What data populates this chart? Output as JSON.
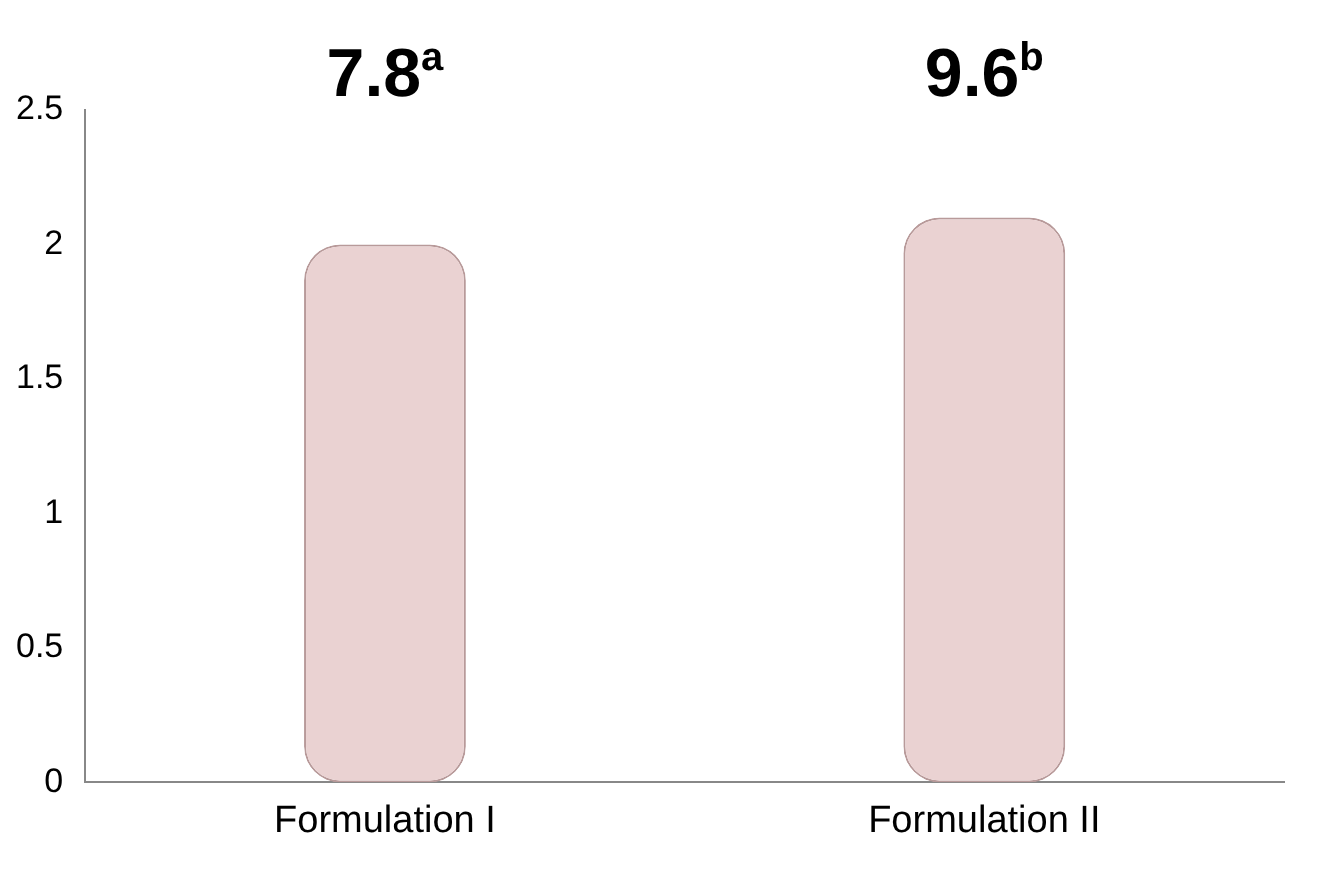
{
  "chart_data": {
    "type": "bar",
    "categories": [
      "Formulation I",
      "Formulation II"
    ],
    "values": [
      2.0,
      2.1
    ],
    "color": "#ead2d2",
    "ylim": [
      0,
      2.5
    ],
    "yticks": [
      0,
      0.5,
      1,
      1.5,
      2,
      2.5
    ],
    "grid": false,
    "legend": false,
    "annotations": [
      "7.8$^{a}$",
      "9.6$^{b}$"
    ]
  }
}
